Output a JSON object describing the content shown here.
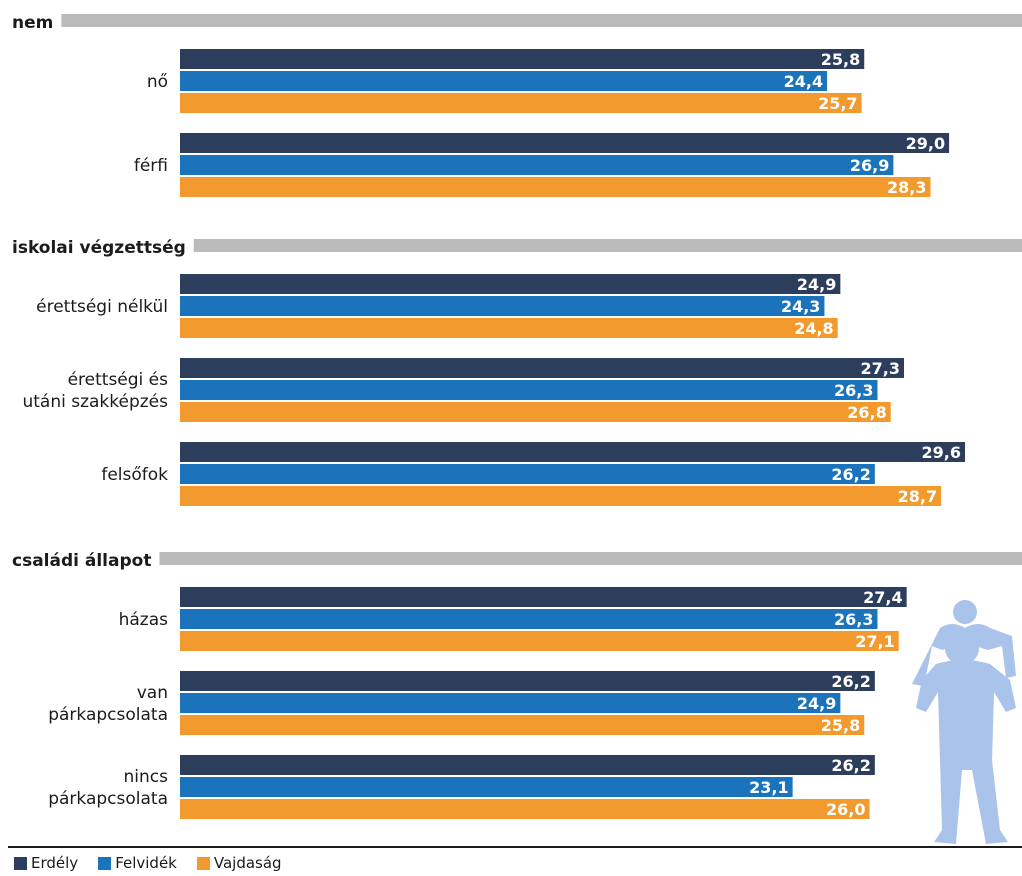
{
  "chart_data": {
    "type": "bar",
    "orientation": "horizontal",
    "xlim": [
      0,
      29.6
    ],
    "grid": false,
    "legend_position": "bottom-left",
    "series": [
      {
        "name": "Erdély",
        "color": "#2c3e5c"
      },
      {
        "name": "Felvidék",
        "color": "#1a73bb"
      },
      {
        "name": "Vajdaság",
        "color": "#f39a2e"
      }
    ],
    "groups": [
      {
        "title": "nem",
        "categories": [
          {
            "label": [
              "nő"
            ],
            "values": [
              25.8,
              24.4,
              25.7
            ],
            "labels": [
              "25,8",
              "24,4",
              "25,7"
            ]
          },
          {
            "label": [
              "férfi"
            ],
            "values": [
              29.0,
              26.9,
              28.3
            ],
            "labels": [
              "29,0",
              "26,9",
              "28,3"
            ]
          }
        ]
      },
      {
        "title": "iskolai végzettség",
        "categories": [
          {
            "label": [
              "érettségi nélkül"
            ],
            "values": [
              24.9,
              24.3,
              24.8
            ],
            "labels": [
              "24,9",
              "24,3",
              "24,8"
            ]
          },
          {
            "label": [
              "érettségi és",
              "utáni szakképzés"
            ],
            "values": [
              27.3,
              26.3,
              26.8
            ],
            "labels": [
              "27,3",
              "26,3",
              "26,8"
            ]
          },
          {
            "label": [
              "felsőfok"
            ],
            "values": [
              29.6,
              26.2,
              28.7
            ],
            "labels": [
              "29,6",
              "26,2",
              "28,7"
            ]
          }
        ]
      },
      {
        "title": "családi állapot",
        "categories": [
          {
            "label": [
              "házas"
            ],
            "values": [
              27.4,
              26.3,
              27.1
            ],
            "labels": [
              "27,4",
              "26,3",
              "27,1"
            ]
          },
          {
            "label": [
              "van",
              "párkapcsolata"
            ],
            "values": [
              26.2,
              24.9,
              25.8
            ],
            "labels": [
              "26,2",
              "24,9",
              "25,8"
            ]
          },
          {
            "label": [
              "nincs",
              "párkapcsolata"
            ],
            "values": [
              26.2,
              23.1,
              26.0
            ],
            "labels": [
              "26,2",
              "23,1",
              "26,0"
            ]
          }
        ]
      }
    ]
  },
  "colors": {
    "title_rule": "#bbbbbb",
    "figure": "#a9c3ea",
    "bottom_rule": "#1b1b1b"
  },
  "legend": {
    "items": [
      {
        "label": "Erdély",
        "color": "#2c3e5c"
      },
      {
        "label": "Felvidék",
        "color": "#1a73bb"
      },
      {
        "label": "Vajdaság",
        "color": "#f39a2e"
      }
    ]
  }
}
